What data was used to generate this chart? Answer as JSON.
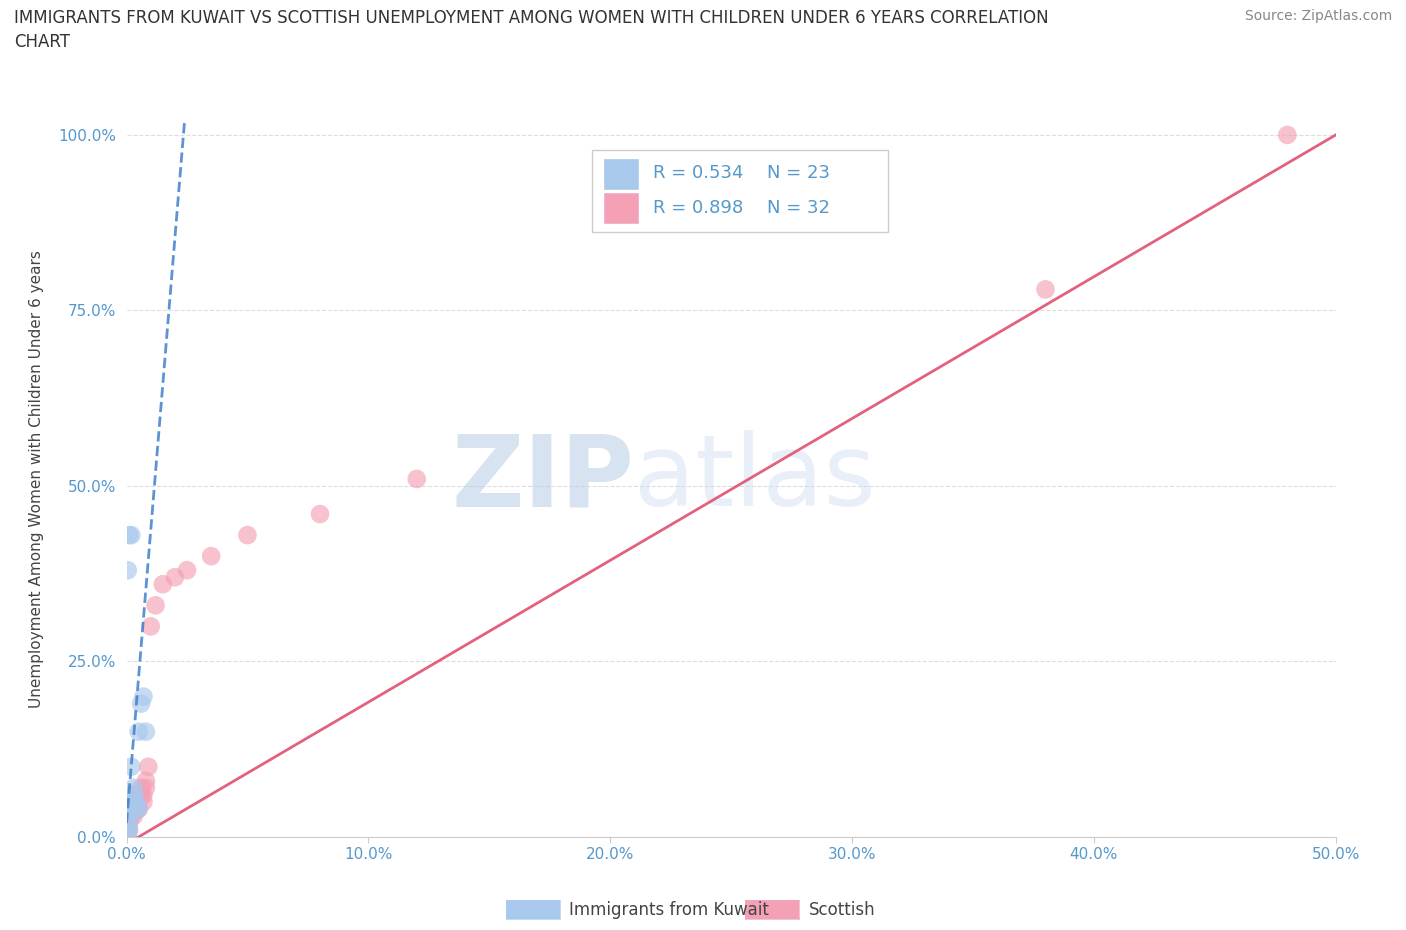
{
  "title_line1": "IMMIGRANTS FROM KUWAIT VS SCOTTISH UNEMPLOYMENT AMONG WOMEN WITH CHILDREN UNDER 6 YEARS CORRELATION",
  "title_line2": "CHART",
  "source": "Source: ZipAtlas.com",
  "ylabel": "Unemployment Among Women with Children Under 6 years",
  "xlim": [
    0,
    0.5
  ],
  "ylim": [
    0,
    1.02
  ],
  "xticks": [
    0.0,
    0.1,
    0.2,
    0.3,
    0.4,
    0.5
  ],
  "yticks": [
    0.0,
    0.25,
    0.5,
    0.75,
    1.0
  ],
  "xtick_labels": [
    "0.0%",
    "10.0%",
    "20.0%",
    "30.0%",
    "40.0%",
    "50.0%"
  ],
  "ytick_labels": [
    "0.0%",
    "25.0%",
    "50.0%",
    "75.0%",
    "100.0%"
  ],
  "watermark_zip": "ZIP",
  "watermark_atlas": "atlas",
  "legend_R_blue": "R = 0.534",
  "legend_N_blue": "N = 23",
  "legend_R_pink": "R = 0.898",
  "legend_N_pink": "N = 32",
  "blue_color": "#A8C8EC",
  "pink_color": "#F4A0B5",
  "blue_line_color": "#4080CC",
  "pink_line_color": "#E05070",
  "tick_color": "#5599CC",
  "blue_scatter_x": [
    0.0005,
    0.001,
    0.001,
    0.001,
    0.0015,
    0.002,
    0.002,
    0.002,
    0.002,
    0.003,
    0.003,
    0.003,
    0.003,
    0.004,
    0.004,
    0.005,
    0.005,
    0.006,
    0.007,
    0.008,
    0.0005,
    0.001,
    0.002
  ],
  "blue_scatter_y": [
    0.005,
    0.01,
    0.02,
    0.03,
    0.04,
    0.04,
    0.05,
    0.06,
    0.1,
    0.04,
    0.05,
    0.06,
    0.07,
    0.04,
    0.05,
    0.04,
    0.15,
    0.19,
    0.2,
    0.15,
    0.38,
    0.43,
    0.43
  ],
  "pink_scatter_x": [
    0.0005,
    0.001,
    0.001,
    0.001,
    0.002,
    0.002,
    0.002,
    0.003,
    0.003,
    0.003,
    0.004,
    0.004,
    0.005,
    0.005,
    0.006,
    0.006,
    0.007,
    0.007,
    0.008,
    0.008,
    0.009,
    0.01,
    0.012,
    0.015,
    0.02,
    0.025,
    0.035,
    0.05,
    0.08,
    0.12,
    0.38,
    0.48
  ],
  "pink_scatter_y": [
    0.005,
    0.01,
    0.02,
    0.03,
    0.03,
    0.04,
    0.05,
    0.03,
    0.04,
    0.05,
    0.04,
    0.06,
    0.04,
    0.05,
    0.06,
    0.07,
    0.05,
    0.06,
    0.07,
    0.08,
    0.1,
    0.3,
    0.33,
    0.36,
    0.37,
    0.38,
    0.4,
    0.43,
    0.46,
    0.51,
    0.78,
    1.0
  ],
  "blue_trend_x1": 0.0,
  "blue_trend_y1": 0.02,
  "blue_trend_x2": 0.024,
  "blue_trend_y2": 1.02,
  "pink_trend_x1": -0.005,
  "pink_trend_y1": -0.02,
  "pink_trend_x2": 0.5,
  "pink_trend_y2": 1.0,
  "background_color": "#FFFFFF",
  "grid_color": "#DDDDDD",
  "bottom_legend_blue_label": "Immigrants from Kuwait",
  "bottom_legend_pink_label": "Scottish"
}
